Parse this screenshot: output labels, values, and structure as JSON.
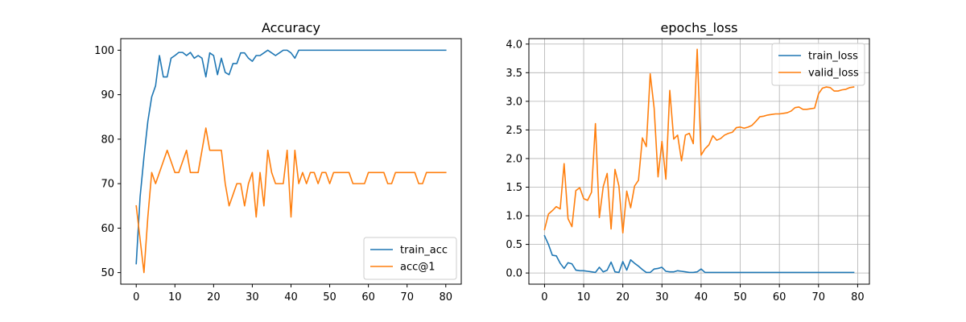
{
  "colors": {
    "train": "#1f77b4",
    "valid": "#ff7f0e",
    "grid": "#b0b0b0",
    "axis": "#000000"
  },
  "chart_data": [
    {
      "type": "line",
      "title": "Accuracy",
      "xlabel": "",
      "ylabel": "",
      "xlim": [
        -4,
        84
      ],
      "ylim": [
        47.4,
        102.6
      ],
      "x_ticks": [
        0,
        10,
        20,
        30,
        40,
        50,
        60,
        70,
        80
      ],
      "y_ticks": [
        50,
        60,
        70,
        80,
        90,
        100
      ],
      "grid": false,
      "legend_position": "lower-right",
      "series": [
        {
          "name": "train_acc",
          "color": "#1f77b4",
          "x_start": 0,
          "values": [
            52,
            67,
            76,
            84,
            89.5,
            92,
            98.8,
            94,
            94,
            98.2,
            98.8,
            99.5,
            99.5,
            98.8,
            99.5,
            98.2,
            98.8,
            98.2,
            94,
            99.4,
            98.8,
            94.5,
            98.2,
            95,
            94.5,
            97,
            97,
            99.4,
            99.4,
            98.2,
            97.5,
            98.8,
            98.8,
            99.4,
            100,
            99.4,
            98.8,
            99.4,
            100,
            100,
            99.4,
            98.2,
            100,
            100,
            100,
            100,
            100,
            100,
            100,
            100,
            100,
            100,
            100,
            100,
            100,
            100,
            100,
            100,
            100,
            100,
            100,
            100,
            100,
            100,
            100,
            100,
            100,
            100,
            100,
            100,
            100,
            100,
            100,
            100,
            100,
            100,
            100,
            100,
            100,
            100,
            100
          ]
        },
        {
          "name": "acc@1",
          "color": "#ff7f0e",
          "x_start": 0,
          "values": [
            65,
            57.5,
            50,
            62.5,
            72.5,
            70,
            72.5,
            75,
            77.5,
            75,
            72.5,
            72.5,
            75,
            77.5,
            72.5,
            72.5,
            72.5,
            77.5,
            82.5,
            77.5,
            77.5,
            77.5,
            77.5,
            70,
            65,
            67.5,
            70,
            70,
            65,
            70,
            72.5,
            62.5,
            72.5,
            65,
            77.5,
            72.5,
            70,
            70,
            70,
            77.5,
            62.5,
            77.5,
            70,
            72.5,
            70,
            72.5,
            72.5,
            70,
            72.5,
            72.5,
            70,
            72.5,
            72.5,
            72.5,
            72.5,
            72.5,
            70,
            70,
            70,
            70,
            72.5,
            72.5,
            72.5,
            72.5,
            72.5,
            70,
            70,
            72.5,
            72.5,
            72.5,
            72.5,
            72.5,
            72.5,
            70,
            70,
            72.5,
            72.5,
            72.5,
            72.5,
            72.5,
            72.5
          ]
        }
      ]
    },
    {
      "type": "line",
      "title": "epochs_loss",
      "xlabel": "",
      "ylabel": "",
      "xlim": [
        -4,
        83
      ],
      "ylim": [
        -0.195,
        4.095
      ],
      "x_ticks": [
        0,
        10,
        20,
        30,
        40,
        50,
        60,
        70,
        80
      ],
      "y_ticks": [
        0.0,
        0.5,
        1.0,
        1.5,
        2.0,
        2.5,
        3.0,
        3.5,
        4.0
      ],
      "y_tick_labels": [
        "0.0",
        "0.5",
        "1.0",
        "1.5",
        "2.0",
        "2.5",
        "3.0",
        "3.5",
        "4.0"
      ],
      "grid": true,
      "legend_position": "top-right",
      "series": [
        {
          "name": "train_loss",
          "color": "#1f77b4",
          "x_start": 0,
          "values": [
            0.65,
            0.5,
            0.31,
            0.3,
            0.17,
            0.08,
            0.18,
            0.16,
            0.05,
            0.04,
            0.04,
            0.03,
            0.02,
            0.01,
            0.1,
            0.02,
            0.05,
            0.19,
            0.02,
            0.01,
            0.2,
            0.05,
            0.23,
            0.17,
            0.12,
            0.06,
            0.01,
            0.01,
            0.07,
            0.08,
            0.1,
            0.03,
            0.02,
            0.02,
            0.04,
            0.03,
            0.02,
            0.01,
            0.01,
            0.02,
            0.07,
            0.01,
            0.01,
            0.01,
            0.01,
            0.01,
            0.01,
            0.01,
            0.01,
            0.01,
            0.01,
            0.01,
            0.01,
            0.01,
            0.01,
            0.01,
            0.01,
            0.01,
            0.01,
            0.01,
            0.01,
            0.01,
            0.01,
            0.01,
            0.01,
            0.01,
            0.01,
            0.01,
            0.01,
            0.01,
            0.01,
            0.01,
            0.01,
            0.01,
            0.01,
            0.01,
            0.01,
            0.01,
            0.01,
            0.01
          ]
        },
        {
          "name": "valid_loss",
          "color": "#ff7f0e",
          "x_start": 0,
          "values": [
            0.76,
            1.03,
            1.09,
            1.16,
            1.12,
            1.91,
            0.95,
            0.81,
            1.44,
            1.49,
            1.3,
            1.27,
            1.41,
            2.61,
            0.97,
            1.51,
            1.74,
            0.77,
            1.81,
            1.52,
            0.7,
            1.43,
            1.14,
            1.52,
            1.62,
            2.36,
            2.21,
            3.48,
            2.88,
            1.68,
            2.3,
            1.64,
            3.19,
            2.34,
            2.41,
            1.96,
            2.41,
            2.44,
            2.26,
            3.91,
            2.06,
            2.17,
            2.24,
            2.4,
            2.32,
            2.35,
            2.41,
            2.44,
            2.46,
            2.54,
            2.55,
            2.53,
            2.55,
            2.58,
            2.65,
            2.73,
            2.74,
            2.76,
            2.77,
            2.78,
            2.78,
            2.79,
            2.8,
            2.83,
            2.89,
            2.9,
            2.86,
            2.86,
            2.87,
            2.88,
            3.13,
            3.23,
            3.25,
            3.24,
            3.18,
            3.18,
            3.2,
            3.21,
            3.24,
            3.25
          ]
        }
      ]
    }
  ]
}
